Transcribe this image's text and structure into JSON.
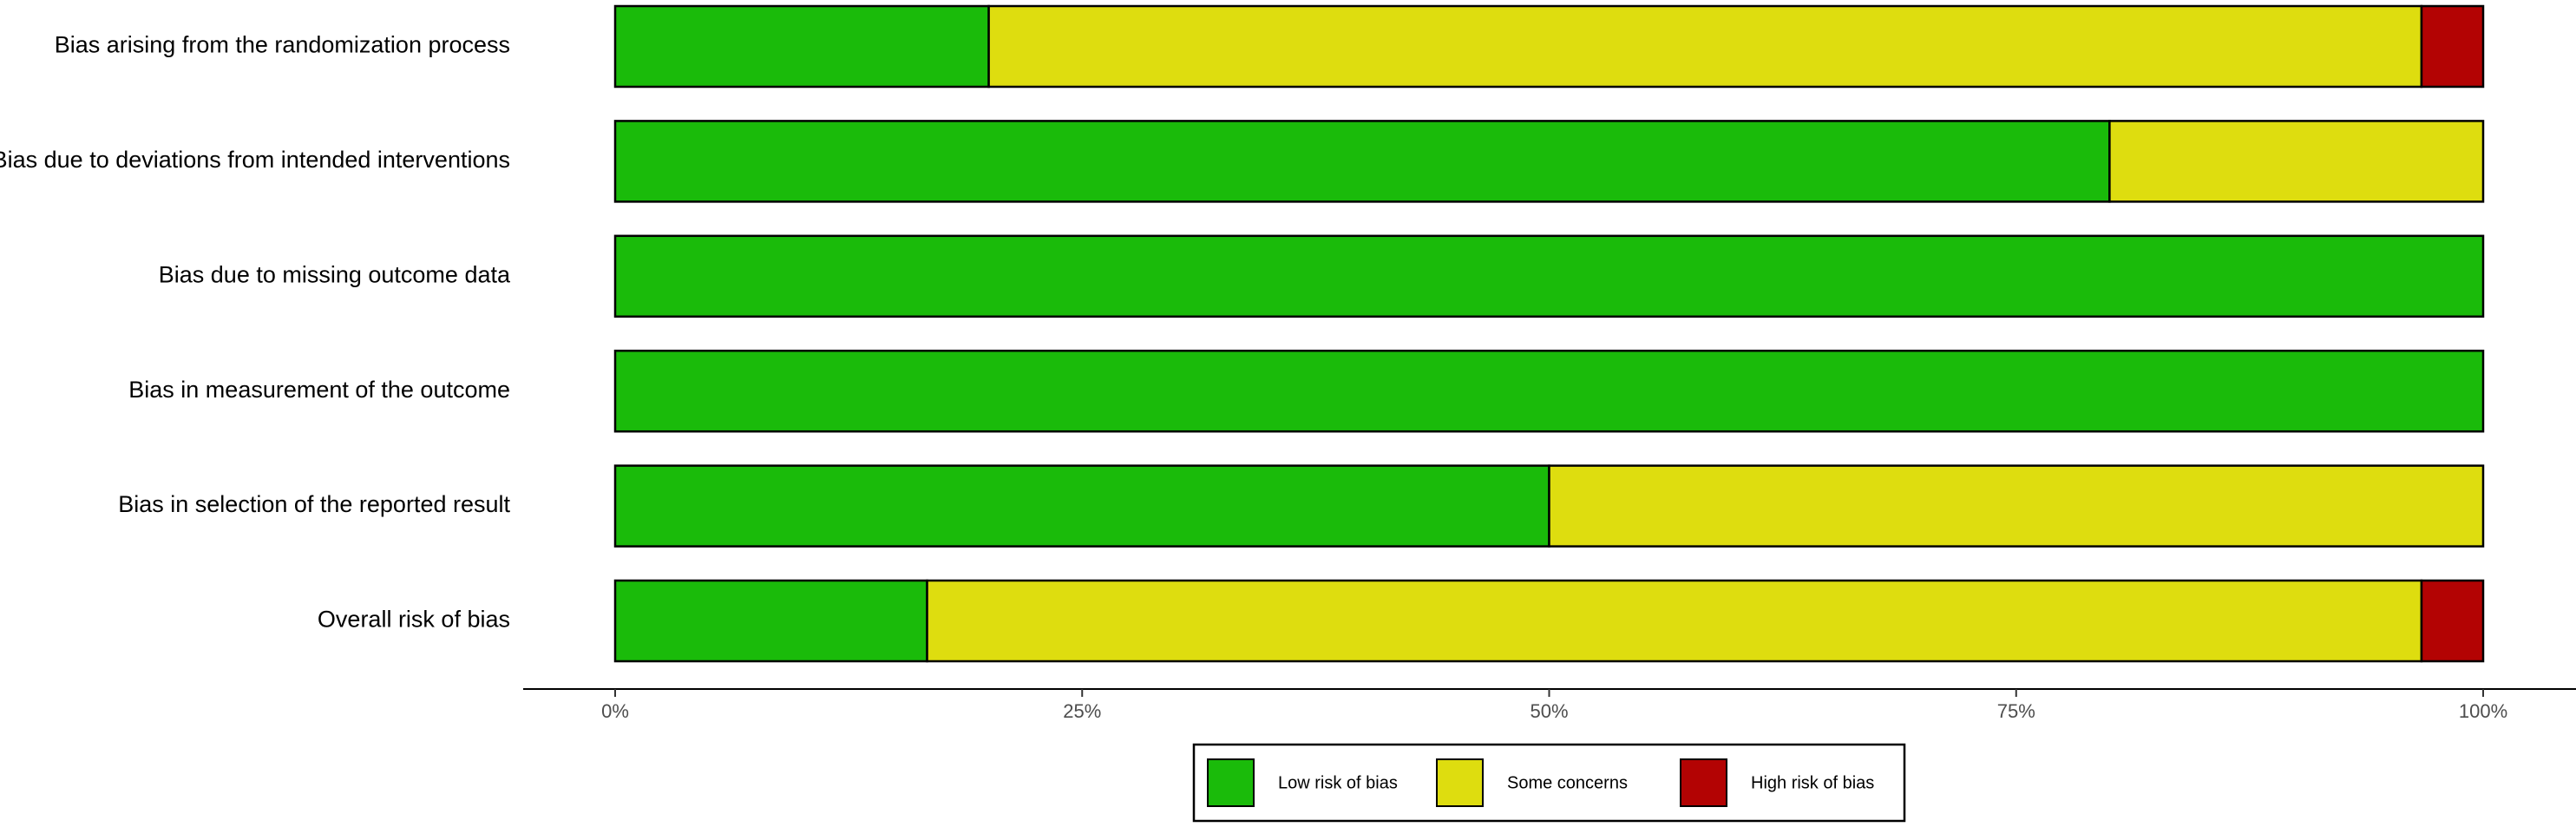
{
  "chart_data": {
    "type": "bar",
    "orientation": "horizontal",
    "stacked": true,
    "categories": [
      "Bias arising from the randomization process",
      "Bias due to deviations from intended interventions",
      "Bias due to missing outcome data",
      "Bias in measurement of the outcome",
      "Bias in selection of the reported result",
      "Overall risk of bias"
    ],
    "series": [
      {
        "name": "Low risk of bias",
        "color": "#1abb0a",
        "values": [
          20,
          80,
          100,
          100,
          50,
          16.7
        ]
      },
      {
        "name": "Some concerns",
        "color": "#dedd0f",
        "values": [
          76.7,
          20,
          0,
          0,
          50,
          80
        ]
      },
      {
        "name": "High risk of bias",
        "color": "#b30303",
        "values": [
          3.3,
          0,
          0,
          0,
          0,
          3.3
        ]
      }
    ],
    "x_ticks": [
      "0%",
      "25%",
      "50%",
      "75%",
      "100%"
    ],
    "xlim": [
      0,
      100
    ],
    "title": "",
    "xlabel": "",
    "ylabel": "",
    "grid": false,
    "legend_position": "bottom"
  }
}
